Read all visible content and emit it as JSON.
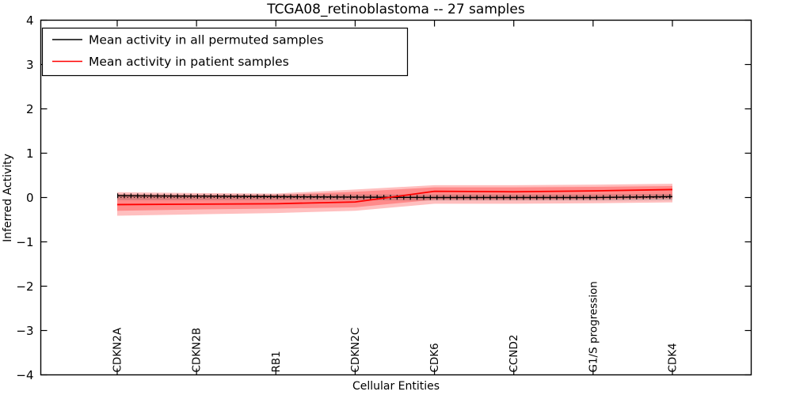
{
  "figure": {
    "title": "TCGA08_retinoblastoma -- 27 samples",
    "xlabel": "Cellular Entities",
    "ylabel": "Inferred Activity"
  },
  "legend": {
    "position": "upper left",
    "items": [
      {
        "label": "Mean activity in all permuted samples",
        "color": "#000000"
      },
      {
        "label": "Mean activity in patient samples",
        "color": "#ff0000"
      }
    ]
  },
  "chart_data": {
    "type": "line",
    "title": "TCGA08_retinoblastoma -- 27 samples",
    "xlabel": "Cellular Entities",
    "ylabel": "Inferred Activity",
    "grid": false,
    "legend_position": "upper left",
    "categories": [
      "CDKN2A",
      "CDKN2B",
      "RB1",
      "CDKN2C",
      "CDK6",
      "CCND2",
      "G1/S progression",
      "CDK4"
    ],
    "ylim": [
      -4,
      4
    ],
    "ytick_values": [
      4,
      3,
      2,
      1,
      0,
      -1,
      -2,
      -3,
      -4
    ],
    "ytick_labels": [
      "4",
      "3",
      "2",
      "1",
      "0",
      "−1",
      "−2",
      "−3",
      "−4"
    ],
    "series": [
      {
        "name": "Mean activity in all permuted samples",
        "color": "#000000",
        "marker": "vertical-tick",
        "values": [
          0.04,
          0.03,
          0.02,
          0.01,
          0.0,
          0.0,
          0.0,
          0.02
        ]
      },
      {
        "name": "Mean activity in patient samples",
        "color": "#ff0000",
        "marker": "none",
        "values": [
          -0.16,
          -0.15,
          -0.14,
          -0.1,
          0.14,
          0.13,
          0.15,
          0.18
        ]
      }
    ],
    "bands": [
      {
        "name": "patient-samples-outer-band",
        "color": "#ff0000",
        "opacity": 0.25,
        "upper": [
          0.12,
          0.1,
          0.09,
          0.18,
          0.28,
          0.28,
          0.29,
          0.31
        ],
        "lower": [
          -0.41,
          -0.38,
          -0.35,
          -0.3,
          -0.14,
          -0.14,
          -0.13,
          -0.11
        ]
      },
      {
        "name": "patient-samples-inner-band",
        "color": "#ff0000",
        "opacity": 0.28,
        "upper": [
          0.07,
          0.06,
          0.06,
          0.13,
          0.23,
          0.23,
          0.24,
          0.26
        ],
        "lower": [
          -0.3,
          -0.27,
          -0.25,
          -0.22,
          -0.05,
          -0.05,
          -0.04,
          -0.02
        ]
      },
      {
        "name": "permuted-samples-band",
        "color": "#555555",
        "opacity": 0.22,
        "upper": [
          0.08,
          0.07,
          0.07,
          0.07,
          0.07,
          0.07,
          0.07,
          0.08
        ],
        "lower": [
          -0.06,
          -0.06,
          -0.06,
          -0.06,
          -0.07,
          -0.07,
          -0.07,
          -0.06
        ]
      }
    ],
    "zero_line": {
      "style": "dotted",
      "y": 0,
      "color": "#000000"
    }
  }
}
